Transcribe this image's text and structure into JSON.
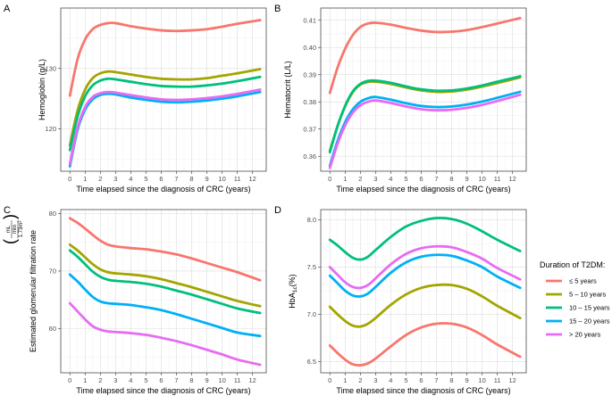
{
  "legend": {
    "title": "Duration of T2DM:",
    "entries": [
      {
        "name": "≤ 5 years",
        "color": "#F8766D"
      },
      {
        "name": "5 – 10 years",
        "color": "#A3A500"
      },
      {
        "name": "10 – 15 years",
        "color": "#00BF7D"
      },
      {
        "name": "15 – 20 years",
        "color": "#00B0F6"
      },
      {
        "name": "> 20 years",
        "color": "#E76BF3"
      }
    ]
  },
  "chart_data": [
    {
      "panel": "A",
      "type": "line",
      "xlabel": "Time elapsed since the diagnosis of CRC (years)",
      "ylabel": "Hemoglobin (g/L)",
      "xlim": [
        -0.6,
        12.9
      ],
      "ylim": [
        113,
        140
      ],
      "xticks": [
        0,
        1,
        2,
        3,
        4,
        5,
        6,
        7,
        8,
        9,
        10,
        11,
        12
      ],
      "yticks": [
        120,
        130
      ],
      "x": [
        0,
        0.5,
        1,
        1.5,
        2,
        2.5,
        3,
        4,
        5,
        6,
        7,
        8,
        9,
        10,
        11,
        12.5
      ],
      "series": [
        {
          "name": "≤ 5 years",
          "values": [
            125.5,
            131.5,
            134.8,
            136.5,
            137.2,
            137.5,
            137.5,
            137.0,
            136.6,
            136.3,
            136.2,
            136.3,
            136.5,
            136.9,
            137.4,
            138.0
          ]
        },
        {
          "name": "5 – 10 years",
          "values": [
            117.3,
            123.0,
            126.5,
            128.4,
            129.2,
            129.5,
            129.4,
            129.0,
            128.6,
            128.3,
            128.2,
            128.2,
            128.4,
            128.8,
            129.2,
            129.9
          ]
        },
        {
          "name": "10 – 15 years",
          "values": [
            116.5,
            122.0,
            125.4,
            127.2,
            128.0,
            128.3,
            128.2,
            127.8,
            127.4,
            127.1,
            127.0,
            127.0,
            127.2,
            127.5,
            127.9,
            128.6
          ]
        },
        {
          "name": "15 – 20 years",
          "values": [
            113.8,
            119.8,
            123.2,
            124.9,
            125.6,
            125.8,
            125.7,
            125.2,
            124.8,
            124.5,
            124.4,
            124.5,
            124.7,
            125.0,
            125.4,
            126.1
          ]
        },
        {
          "name": "> 20 years",
          "values": [
            114.2,
            120.2,
            123.6,
            125.3,
            125.9,
            126.1,
            126.0,
            125.6,
            125.2,
            124.9,
            124.8,
            124.9,
            125.1,
            125.4,
            125.8,
            126.5
          ]
        }
      ]
    },
    {
      "panel": "B",
      "type": "line",
      "xlabel": "Time elapsed since the diagnosis of CRC (years)",
      "ylabel": "Hematocrit (L/L)",
      "xlim": [
        -0.6,
        12.9
      ],
      "ylim": [
        0.3545,
        0.4145
      ],
      "xticks": [
        0,
        1,
        2,
        3,
        4,
        5,
        6,
        7,
        8,
        9,
        10,
        11,
        12
      ],
      "yticks": [
        0.36,
        0.37,
        0.38,
        0.39,
        0.4,
        0.41
      ],
      "x": [
        0,
        0.5,
        1,
        1.5,
        2,
        2.5,
        3,
        4,
        5,
        6,
        7,
        8,
        9,
        10,
        11,
        12.5
      ],
      "series": [
        {
          "name": "≤ 5 years",
          "values": [
            0.3833,
            0.3925,
            0.3995,
            0.4045,
            0.4075,
            0.4088,
            0.4091,
            0.4084,
            0.4072,
            0.4062,
            0.4057,
            0.4058,
            0.4064,
            0.4075,
            0.4088,
            0.4108
          ]
        },
        {
          "name": "5 – 10 years",
          "values": [
            0.362,
            0.371,
            0.3783,
            0.3835,
            0.3863,
            0.3873,
            0.3874,
            0.3866,
            0.3853,
            0.3842,
            0.3837,
            0.3838,
            0.3845,
            0.3856,
            0.3869,
            0.389
          ]
        },
        {
          "name": "10 – 15 years",
          "values": [
            0.3615,
            0.371,
            0.3785,
            0.3838,
            0.3866,
            0.3877,
            0.3878,
            0.387,
            0.3857,
            0.3846,
            0.3841,
            0.3842,
            0.3849,
            0.386,
            0.3874,
            0.3894
          ]
        },
        {
          "name": "15 – 20 years",
          "values": [
            0.3565,
            0.3655,
            0.3725,
            0.3772,
            0.38,
            0.3813,
            0.3818,
            0.3808,
            0.3795,
            0.3785,
            0.3781,
            0.3783,
            0.379,
            0.3801,
            0.3815,
            0.3837
          ]
        },
        {
          "name": "> 20 years",
          "values": [
            0.3557,
            0.3645,
            0.3713,
            0.376,
            0.3787,
            0.38,
            0.3805,
            0.3796,
            0.3783,
            0.3773,
            0.3769,
            0.3771,
            0.3778,
            0.3789,
            0.3803,
            0.3826
          ]
        }
      ]
    },
    {
      "panel": "C",
      "type": "line",
      "xlabel": "Time elapsed since the diagnosis of CRC (years)",
      "ylabel": "Estimated glomerular filtration rate",
      "ylabel_unit": {
        "numerator": "mL",
        "denominator": "min",
        "area": "1.73m²"
      },
      "xlim": [
        -0.6,
        12.9
      ],
      "ylim": [
        52.3,
        80.7
      ],
      "xticks": [
        0,
        1,
        2,
        3,
        4,
        5,
        6,
        7,
        8,
        9,
        10,
        11,
        12
      ],
      "yticks": [
        60,
        70,
        80
      ],
      "x": [
        0,
        0.5,
        1,
        1.5,
        2,
        2.5,
        3,
        4,
        5,
        6,
        7,
        8,
        9,
        10,
        11,
        12.5
      ],
      "series": [
        {
          "name": "≤ 5 years",
          "values": [
            79.2,
            78.4,
            77.4,
            76.3,
            75.3,
            74.6,
            74.3,
            74.0,
            73.8,
            73.4,
            72.9,
            72.2,
            71.4,
            70.6,
            69.8,
            68.4
          ]
        },
        {
          "name": "5 – 10 years",
          "values": [
            74.6,
            73.6,
            72.4,
            71.2,
            70.3,
            69.8,
            69.6,
            69.4,
            69.1,
            68.6,
            67.9,
            67.2,
            66.4,
            65.6,
            64.8,
            63.9
          ]
        },
        {
          "name": "10 – 15 years",
          "values": [
            73.6,
            72.5,
            71.2,
            69.9,
            69.0,
            68.5,
            68.3,
            68.1,
            67.8,
            67.3,
            66.6,
            65.9,
            65.1,
            64.3,
            63.5,
            62.7
          ]
        },
        {
          "name": "15 – 20 years",
          "values": [
            69.4,
            68.2,
            66.8,
            65.5,
            64.7,
            64.4,
            64.3,
            64.1,
            63.7,
            63.2,
            62.5,
            61.7,
            60.9,
            60.1,
            59.3,
            58.7
          ]
        },
        {
          "name": "> 20 years",
          "values": [
            64.4,
            63.0,
            61.6,
            60.4,
            59.8,
            59.5,
            59.4,
            59.2,
            58.9,
            58.4,
            57.8,
            57.1,
            56.3,
            55.5,
            54.6,
            53.7
          ]
        }
      ]
    },
    {
      "panel": "D",
      "type": "line",
      "xlabel": "Time elapsed since the diagnosis of CRC (years)",
      "ylabel": "HbA1c(%)",
      "xlim": [
        -0.6,
        12.9
      ],
      "ylim": [
        6.38,
        8.11
      ],
      "xticks": [
        0,
        1,
        2,
        3,
        4,
        5,
        6,
        7,
        8,
        9,
        10,
        11,
        12
      ],
      "yticks": [
        6.5,
        7.0,
        7.5,
        8.0
      ],
      "x": [
        0,
        0.5,
        1,
        1.5,
        2,
        2.5,
        3,
        4,
        5,
        6,
        7,
        8,
        9,
        10,
        11,
        12.5
      ],
      "series": [
        {
          "name": "≤ 5 years",
          "values": [
            6.67,
            6.59,
            6.52,
            6.47,
            6.46,
            6.48,
            6.53,
            6.66,
            6.78,
            6.86,
            6.9,
            6.9,
            6.86,
            6.78,
            6.68,
            6.55
          ]
        },
        {
          "name": "5 – 10 years",
          "values": [
            7.08,
            7.0,
            6.93,
            6.88,
            6.87,
            6.9,
            6.96,
            7.1,
            7.21,
            7.28,
            7.31,
            7.31,
            7.27,
            7.19,
            7.09,
            6.96
          ]
        },
        {
          "name": "10 – 15 years",
          "values": [
            7.79,
            7.73,
            7.66,
            7.6,
            7.58,
            7.61,
            7.68,
            7.82,
            7.93,
            7.99,
            8.02,
            8.01,
            7.96,
            7.88,
            7.79,
            7.67
          ]
        },
        {
          "name": "15 – 20 years",
          "values": [
            7.41,
            7.33,
            7.25,
            7.2,
            7.19,
            7.22,
            7.29,
            7.44,
            7.55,
            7.61,
            7.63,
            7.62,
            7.57,
            7.5,
            7.4,
            7.28
          ]
        },
        {
          "name": "> 20 years",
          "values": [
            7.5,
            7.42,
            7.34,
            7.29,
            7.28,
            7.31,
            7.38,
            7.53,
            7.64,
            7.7,
            7.72,
            7.71,
            7.66,
            7.59,
            7.49,
            7.37
          ]
        }
      ]
    }
  ]
}
